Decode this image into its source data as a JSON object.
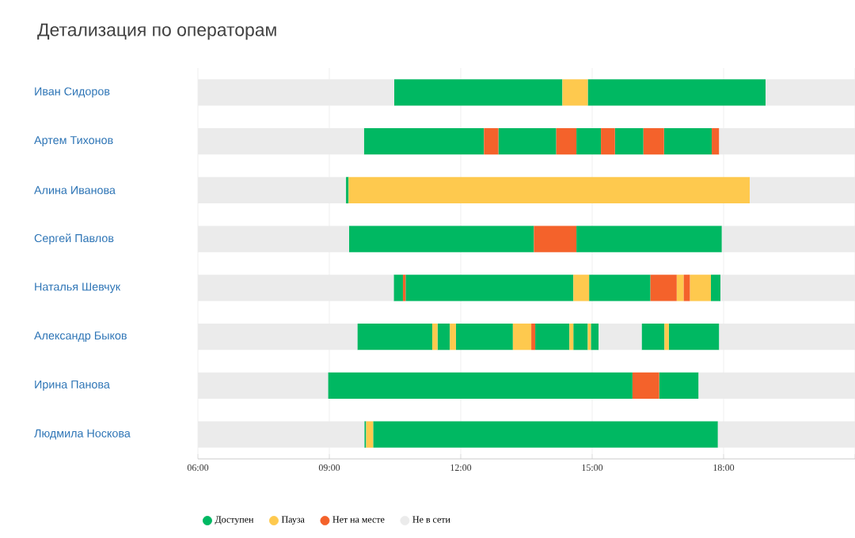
{
  "chart_data": {
    "type": "bar",
    "orientation": "horizontal",
    "title": "Детализация по операторам",
    "categories": [
      "Иван Сидоров",
      "Артем Тихонов",
      "Алина Иванова",
      "Сергей Павлов",
      "Наталья Шевчук",
      "Александр Быков",
      "Ирина Панова",
      "Людмила Носкова"
    ],
    "xlim": [
      6,
      21
    ],
    "xticks": [
      {
        "value": 6,
        "label": "06:00"
      },
      {
        "value": 9,
        "label": "09:00"
      },
      {
        "value": 12,
        "label": "12:00"
      },
      {
        "value": 15,
        "label": "15:00"
      },
      {
        "value": 18,
        "label": "18:00"
      },
      {
        "value": 21,
        "label": null
      }
    ],
    "grid": "x",
    "legend": "bottom",
    "series": [
      {
        "name": "Доступен",
        "color": "#00b862",
        "base": [
          10.48,
          9.79,
          9.38,
          9.45,
          10.47,
          9.64,
          8.97,
          9.8
        ],
        "values": [
          3.84,
          2.74,
          0.06,
          4.22,
          0.21,
          1.71,
          6.95,
          0.04
        ]
      },
      {
        "color": "#00b862",
        "base": [
          14.9,
          12.86,
          null,
          14.64,
          10.74,
          11.47,
          16.53,
          10.0
        ],
        "values": [
          4.06,
          1.32,
          null,
          3.32,
          3.83,
          0.28,
          0.9,
          7.87
        ]
      },
      {
        "color": "#00b862",
        "base": [
          null,
          14.64,
          null,
          null,
          14.93,
          11.89,
          null,
          null
        ],
        "values": [
          null,
          0.56,
          null,
          null,
          1.4,
          1.3,
          null,
          null
        ]
      },
      {
        "color": "#00b862",
        "base": [
          null,
          15.52,
          null,
          null,
          17.71,
          13.7,
          null,
          null
        ],
        "values": [
          null,
          0.65,
          null,
          null,
          0.22,
          0.78,
          null,
          null
        ]
      },
      {
        "color": "#00b862",
        "base": [
          null,
          16.64,
          null,
          null,
          null,
          14.57,
          null,
          null
        ],
        "values": [
          null,
          1.09,
          null,
          null,
          null,
          0.33,
          null,
          null
        ]
      },
      {
        "color": "#00b862",
        "base": [
          null,
          null,
          null,
          null,
          null,
          14.97,
          null,
          null
        ],
        "values": [
          null,
          null,
          null,
          null,
          null,
          0.18,
          null,
          null
        ]
      },
      {
        "color": "#00b862",
        "base": [
          null,
          null,
          null,
          null,
          null,
          16.13,
          null,
          null
        ],
        "values": [
          null,
          null,
          null,
          null,
          null,
          0.52,
          null,
          null
        ]
      },
      {
        "color": "#00b862",
        "base": [
          null,
          null,
          null,
          null,
          null,
          16.75,
          null,
          null
        ],
        "values": [
          null,
          null,
          null,
          null,
          null,
          1.15,
          null,
          null
        ]
      },
      {
        "name": "Пауза",
        "color": "#fec94e",
        "base": [
          14.32,
          null,
          9.44,
          null,
          14.57,
          11.35,
          null,
          9.84
        ],
        "values": [
          0.58,
          null,
          9.16,
          null,
          0.36,
          0.12,
          null,
          0.16
        ]
      },
      {
        "color": "#fec94e",
        "base": [
          null,
          null,
          null,
          null,
          16.93,
          11.75,
          null,
          null
        ],
        "values": [
          null,
          null,
          null,
          null,
          0.16,
          0.14,
          null,
          null
        ]
      },
      {
        "color": "#fec94e",
        "base": [
          null,
          null,
          null,
          null,
          17.23,
          13.19,
          null,
          null
        ],
        "values": [
          null,
          null,
          null,
          null,
          0.48,
          0.42,
          null,
          null
        ]
      },
      {
        "color": "#fec94e",
        "base": [
          null,
          null,
          null,
          null,
          null,
          14.48,
          null,
          null
        ],
        "values": [
          null,
          null,
          null,
          null,
          null,
          0.09,
          null,
          null
        ]
      },
      {
        "color": "#fec94e",
        "base": [
          null,
          null,
          null,
          null,
          null,
          14.9,
          null,
          null
        ],
        "values": [
          null,
          null,
          null,
          null,
          null,
          0.07,
          null,
          null
        ]
      },
      {
        "color": "#fec94e",
        "base": [
          null,
          null,
          null,
          null,
          null,
          16.65,
          null,
          null
        ],
        "values": [
          null,
          null,
          null,
          null,
          null,
          0.1,
          null,
          null
        ]
      },
      {
        "name": "Нет на месте",
        "color": "#f4622b",
        "base": [
          null,
          12.53,
          null,
          13.67,
          10.68,
          13.61,
          15.92,
          null
        ],
        "values": [
          null,
          0.33,
          null,
          0.97,
          0.06,
          0.09,
          0.61,
          null
        ]
      },
      {
        "color": "#f4622b",
        "base": [
          null,
          14.18,
          null,
          null,
          16.33,
          null,
          null,
          null
        ],
        "values": [
          null,
          0.46,
          null,
          null,
          0.6,
          null,
          null,
          null
        ]
      },
      {
        "color": "#f4622b",
        "base": [
          null,
          15.2,
          null,
          null,
          17.09,
          null,
          null,
          null
        ],
        "values": [
          null,
          0.32,
          null,
          null,
          0.14,
          null,
          null,
          null
        ]
      },
      {
        "color": "#f4622b",
        "base": [
          null,
          16.17,
          null,
          null,
          null,
          null,
          null,
          null
        ],
        "values": [
          null,
          0.47,
          null,
          null,
          null,
          null,
          null,
          null
        ]
      },
      {
        "color": "#f4622b",
        "base": [
          null,
          17.73,
          null,
          null,
          null,
          null,
          null,
          null
        ],
        "values": [
          null,
          0.17,
          null,
          null,
          null,
          null,
          null,
          null
        ]
      },
      {
        "name": "Не в сети",
        "color": "#ebebeb",
        "base": [
          6,
          6,
          6,
          6,
          6,
          6,
          6,
          6
        ],
        "values": [
          4.48,
          3.79,
          3.38,
          3.45,
          4.47,
          3.64,
          2.97,
          3.8
        ]
      },
      {
        "color": "#ebebeb",
        "base": [
          18.96,
          17.9,
          18.6,
          17.96,
          17.93,
          15.15,
          17.43,
          17.87
        ],
        "values": [
          2.04,
          3.1,
          2.4,
          3.04,
          3.07,
          0.98,
          3.57,
          3.13
        ]
      },
      {
        "color": "#ebebeb",
        "base": [
          null,
          null,
          null,
          null,
          null,
          17.9,
          null,
          null
        ],
        "values": [
          null,
          null,
          null,
          null,
          null,
          3.1,
          null,
          null
        ]
      }
    ]
  }
}
